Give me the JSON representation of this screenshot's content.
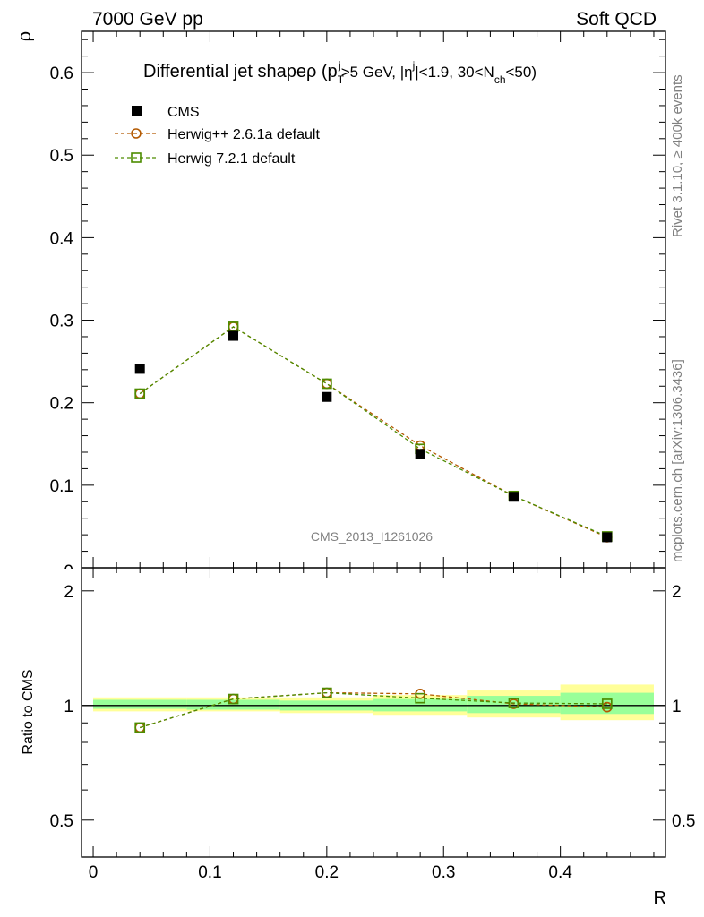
{
  "header": {
    "left": "7000 GeV pp",
    "right": "Soft QCD"
  },
  "side": {
    "rivet": "Rivet 3.1.10, ≥ 400k events",
    "mcplots": "mcplots.cern.ch [arXiv:1306.3436]"
  },
  "chart_data": [
    {
      "type": "scatter",
      "title": "Differential jet shapeρ (p",
      "title_parts": {
        "pt_sup": "j",
        "pt_sub": "T",
        "mid": ">5 GeV, |η",
        "eta_sup": "j",
        "end1": "|<1.9, 30<N",
        "nch_sub": "ch",
        "end2": "<50)"
      },
      "analysis_label": "CMS_2013_I1261026",
      "ylabel": "ρ",
      "xlabel": "R",
      "xlim": [
        -0.01,
        0.49
      ],
      "ylim": [
        0,
        0.65
      ],
      "x_ticks": [
        "0",
        "0.1",
        "0.2",
        "0.3",
        "0.4"
      ],
      "y_ticks": [
        "0.1",
        "0.2",
        "0.3",
        "0.4",
        "0.5",
        "0.6"
      ],
      "y_zero_label": "0",
      "legend_position": "top-left",
      "series": [
        {
          "name": "CMS",
          "marker": "filled-square",
          "color": "#000000",
          "x": [
            0.04,
            0.12,
            0.2,
            0.28,
            0.36,
            0.44
          ],
          "values": [
            0.241,
            0.281,
            0.207,
            0.138,
            0.086,
            0.037
          ],
          "x_bins": [
            [
              0.0,
              0.08
            ],
            [
              0.08,
              0.16
            ],
            [
              0.16,
              0.24
            ],
            [
              0.24,
              0.32
            ],
            [
              0.32,
              0.4
            ],
            [
              0.4,
              0.48
            ]
          ]
        },
        {
          "name": "Herwig++ 2.6.1a default",
          "marker": "open-circle",
          "color": "#b35900",
          "x": [
            0.04,
            0.12,
            0.2,
            0.28,
            0.36,
            0.44
          ],
          "values": [
            0.211,
            0.292,
            0.223,
            0.148,
            0.087,
            0.037
          ]
        },
        {
          "name": "Herwig 7.2.1 default",
          "marker": "open-square",
          "color": "#4d8c00",
          "x": [
            0.04,
            0.12,
            0.2,
            0.28,
            0.36,
            0.44
          ],
          "values": [
            0.211,
            0.292,
            0.223,
            0.144,
            0.087,
            0.038
          ]
        }
      ]
    },
    {
      "type": "scatter",
      "ylabel": "Ratio to CMS",
      "xlabel": "R",
      "log_y": true,
      "xlim": [
        -0.01,
        0.49
      ],
      "ylim": [
        0.4,
        2.3
      ],
      "y_ticks": [
        "0.5",
        "1",
        "2"
      ],
      "reference_line": 1,
      "bands": {
        "x_bins": [
          [
            0.0,
            0.08
          ],
          [
            0.08,
            0.16
          ],
          [
            0.16,
            0.24
          ],
          [
            0.24,
            0.32
          ],
          [
            0.32,
            0.4
          ],
          [
            0.4,
            0.48
          ]
        ],
        "outer": [
          [
            0.965,
            1.05
          ],
          [
            0.965,
            1.05
          ],
          [
            0.955,
            1.05
          ],
          [
            0.945,
            1.065
          ],
          [
            0.93,
            1.095
          ],
          [
            0.915,
            1.135
          ]
        ],
        "inner": [
          [
            0.98,
            1.035
          ],
          [
            0.975,
            1.035
          ],
          [
            0.97,
            1.03
          ],
          [
            0.965,
            1.04
          ],
          [
            0.955,
            1.06
          ],
          [
            0.95,
            1.08
          ]
        ],
        "outer_color": "#ffff99",
        "inner_color": "#99ff99"
      },
      "series": [
        {
          "name": "Herwig++ 2.6.1a default",
          "marker": "open-circle",
          "color": "#b35900",
          "x": [
            0.04,
            0.12,
            0.2,
            0.28,
            0.36,
            0.44
          ],
          "values": [
            0.875,
            1.04,
            1.08,
            1.073,
            1.01,
            0.99
          ]
        },
        {
          "name": "Herwig 7.2.1 default",
          "marker": "open-square",
          "color": "#4d8c00",
          "x": [
            0.04,
            0.12,
            0.2,
            0.28,
            0.36,
            0.44
          ],
          "values": [
            0.875,
            1.04,
            1.08,
            1.045,
            1.015,
            1.01
          ]
        }
      ]
    }
  ]
}
